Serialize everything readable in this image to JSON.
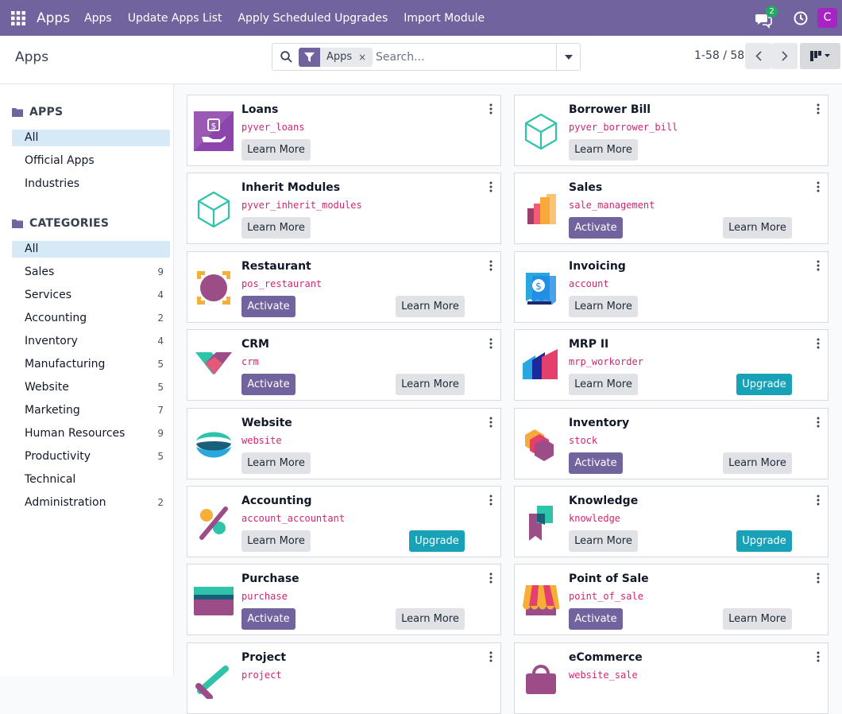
{
  "navbar": {
    "brand": "Apps",
    "menus": [
      "Apps",
      "Update Apps List",
      "Apply Scheduled Upgrades",
      "Import Module"
    ],
    "chat_count": "2",
    "avatar_letter": "C",
    "icons": [
      "apps-grid-icon",
      "chat-icon",
      "clock-icon"
    ]
  },
  "control": {
    "breadcrumb": "Apps",
    "facet_label": "Apps",
    "facet_remove": "×",
    "search_placeholder": "Search...",
    "pager": "1-58 / 58"
  },
  "sidebar": {
    "apps_header": "APPS",
    "apps_items": [
      {
        "label": "All",
        "active": true
      },
      {
        "label": "Official Apps"
      },
      {
        "label": "Industries"
      }
    ],
    "categories_header": "CATEGORIES",
    "categories": [
      {
        "label": "All",
        "count": "",
        "active": true
      },
      {
        "label": "Sales",
        "count": "9"
      },
      {
        "label": "Services",
        "count": "4"
      },
      {
        "label": "Accounting",
        "count": "2"
      },
      {
        "label": "Inventory",
        "count": "4"
      },
      {
        "label": "Manufacturing",
        "count": "5"
      },
      {
        "label": "Website",
        "count": "5"
      },
      {
        "label": "Marketing",
        "count": "7"
      },
      {
        "label": "Human Resources",
        "count": "9"
      },
      {
        "label": "Productivity",
        "count": "5"
      },
      {
        "label": "Technical",
        "count": ""
      },
      {
        "label": "Administration",
        "count": "2"
      }
    ]
  },
  "buttons": {
    "learn_more": "Learn More",
    "activate": "Activate",
    "upgrade": "Upgrade"
  },
  "apps": [
    {
      "name": "Loans",
      "tech": "pyver_loans",
      "icon": "loans-icon"
    },
    {
      "name": "Borrower Bill",
      "tech": "pyver_borrower_bill",
      "icon": "cube-icon"
    },
    {
      "name": "Inherit Modules",
      "tech": "pyver_inherit_modules",
      "icon": "cube-icon"
    },
    {
      "name": "Sales",
      "tech": "sale_management",
      "icon": "sales-icon"
    },
    {
      "name": "Restaurant",
      "tech": "pos_restaurant",
      "icon": "restaurant-icon"
    },
    {
      "name": "Invoicing",
      "tech": "account",
      "icon": "invoicing-icon"
    },
    {
      "name": "CRM",
      "tech": "crm",
      "icon": "crm-icon"
    },
    {
      "name": "MRP II",
      "tech": "mrp_workorder",
      "icon": "mrp-icon"
    },
    {
      "name": "Website",
      "tech": "website",
      "icon": "website-icon"
    },
    {
      "name": "Inventory",
      "tech": "stock",
      "icon": "inventory-icon"
    },
    {
      "name": "Accounting",
      "tech": "account_accountant",
      "icon": "accounting-icon"
    },
    {
      "name": "Knowledge",
      "tech": "knowledge",
      "icon": "knowledge-icon"
    },
    {
      "name": "Purchase",
      "tech": "purchase",
      "icon": "purchase-icon"
    },
    {
      "name": "Point of Sale",
      "tech": "point_of_sale",
      "icon": "pos-icon"
    },
    {
      "name": "Project",
      "tech": "project",
      "icon": "project-icon"
    },
    {
      "name": "eCommerce",
      "tech": "website_sale",
      "icon": "ecommerce-icon"
    }
  ],
  "colors": {
    "brand": "#71639e",
    "upgrade": "#17a2b8",
    "tech_name": "#d1266f",
    "active_filter": "#d6e9f6"
  }
}
